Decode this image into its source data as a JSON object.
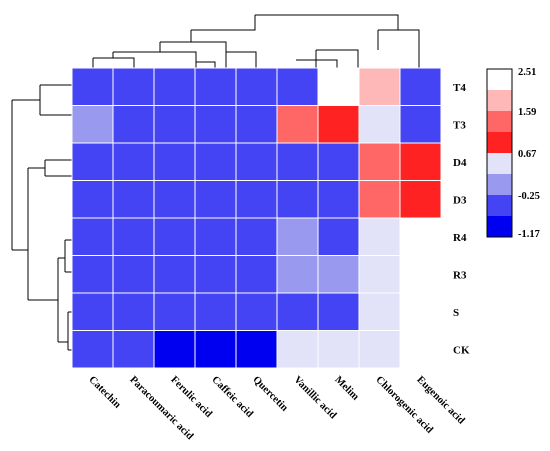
{
  "chart_data": {
    "type": "heatmap",
    "title": "",
    "xlabel": "",
    "ylabel": "",
    "rows": [
      "T4",
      "T3",
      "D4",
      "D3",
      "R4",
      "R3",
      "S",
      "CK"
    ],
    "columns": [
      "Catechin",
      "Paracoumaric acid",
      "Ferulic acid",
      "Caffeic acid",
      "Quercetin",
      "Vanillic acid",
      "Melim",
      "Chlorogenic acid",
      "Eugenoic acid"
    ],
    "values": [
      [
        -0.25,
        -0.6,
        -0.6,
        -0.6,
        -0.6,
        -0.25,
        2.51,
        1.9,
        -0.25
      ],
      [
        -0.1,
        -0.6,
        -0.6,
        -0.6,
        -0.6,
        1.4,
        0.9,
        0.67,
        -0.25
      ],
      [
        -0.6,
        -0.6,
        -0.6,
        -0.6,
        -0.6,
        -0.6,
        -0.25,
        1.4,
        0.9
      ],
      [
        -0.6,
        -0.6,
        -0.6,
        -0.6,
        -0.6,
        -0.6,
        -0.25,
        1.4,
        0.9
      ],
      [
        -0.6,
        -0.6,
        -0.6,
        -0.6,
        -0.6,
        -0.1,
        -0.25,
        0.67,
        2.51
      ],
      [
        -0.6,
        -0.6,
        -0.6,
        -0.6,
        -0.6,
        -0.1,
        -0.1,
        0.67,
        2.51
      ],
      [
        -0.6,
        -0.6,
        -0.6,
        -0.6,
        -0.6,
        -0.6,
        -0.25,
        0.67,
        2.51
      ],
      [
        -0.6,
        -0.6,
        -1.17,
        -1.17,
        -1.17,
        0.67,
        0.67,
        0.67,
        2.51
      ]
    ],
    "colorbar": {
      "ticks": [
        2.51,
        1.59,
        0.67,
        -0.25,
        -1.17
      ],
      "tick_labels": [
        "2.51",
        "1.59",
        "0.67",
        "-0.25",
        "-1.17"
      ],
      "colors": [
        "#FFFFFF",
        "#FFB8B8",
        "#FF6666",
        "#FF2222",
        "#E2E2F8",
        "#9999F0",
        "#4444F5",
        "#0000F0"
      ]
    },
    "row_dendrogram": true,
    "column_dendrogram": true,
    "grid": true
  }
}
